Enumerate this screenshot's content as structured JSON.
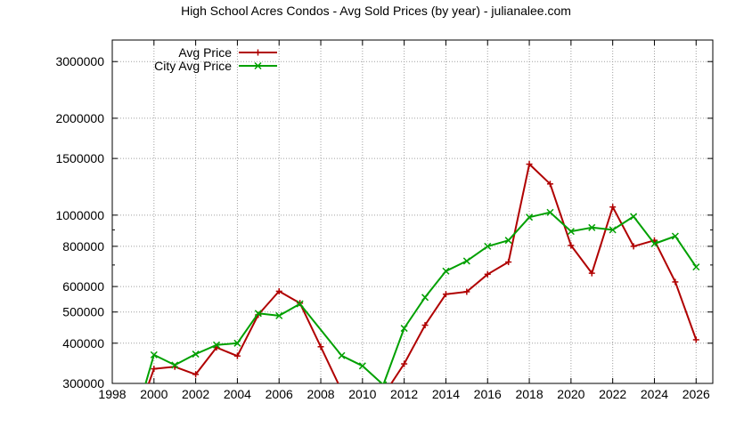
{
  "chart_data": {
    "type": "line",
    "title": "High School Acres Condos - Avg Sold Prices (by year) - julianalee.com",
    "xlabel": "",
    "ylabel": "",
    "y_scale": "log",
    "xlim": [
      1998,
      2026.8
    ],
    "ylim": [
      300000,
      3500000
    ],
    "x_ticks": [
      1998,
      2000,
      2002,
      2004,
      2006,
      2008,
      2010,
      2012,
      2014,
      2016,
      2018,
      2020,
      2022,
      2024,
      2026
    ],
    "y_ticks": [
      300000,
      400000,
      500000,
      600000,
      800000,
      1000000,
      1500000,
      2000000,
      3000000
    ],
    "y_tick_labels": [
      "300000",
      "400000",
      "500000",
      "600000",
      "800000",
      "1000000",
      "1500000",
      "2000000",
      "3000000"
    ],
    "grid": true,
    "legend_position": "top-left",
    "series": [
      {
        "name": "Avg Price",
        "color": "#b00000",
        "marker": "plus",
        "points": [
          [
            1999.5,
            270000
          ],
          [
            2000,
            333000
          ],
          [
            2001,
            338000
          ],
          [
            2002,
            320000
          ],
          [
            2003,
            388000
          ],
          [
            2004,
            365000
          ],
          [
            2005,
            490000
          ],
          [
            2006,
            580000
          ],
          [
            2007,
            533000
          ],
          [
            2008,
            390000
          ],
          [
            2009,
            285000
          ],
          [
            2011,
            275000
          ],
          [
            2012,
            345000
          ],
          [
            2013,
            455000
          ],
          [
            2014,
            568000
          ],
          [
            2015,
            578000
          ],
          [
            2016,
            655000
          ],
          [
            2017,
            715000
          ],
          [
            2018,
            1440000
          ],
          [
            2019,
            1250000
          ],
          [
            2020,
            805000
          ],
          [
            2021,
            660000
          ],
          [
            2022,
            1060000
          ],
          [
            2023,
            800000
          ],
          [
            2024,
            835000
          ],
          [
            2025,
            620000
          ],
          [
            2026,
            410000
          ]
        ]
      },
      {
        "name": "City Avg Price",
        "color": "#00a000",
        "marker": "cross",
        "points": [
          [
            1999.5,
            285000
          ],
          [
            2000,
            368000
          ],
          [
            2001,
            342000
          ],
          [
            2002,
            370000
          ],
          [
            2003,
            395000
          ],
          [
            2004,
            400000
          ],
          [
            2005,
            495000
          ],
          [
            2006,
            487000
          ],
          [
            2007,
            530000
          ],
          [
            2009,
            366000
          ],
          [
            2010,
            340000
          ],
          [
            2011,
            297000
          ],
          [
            2012,
            445000
          ],
          [
            2013,
            555000
          ],
          [
            2014,
            670000
          ],
          [
            2015,
            720000
          ],
          [
            2016,
            800000
          ],
          [
            2017,
            835000
          ],
          [
            2018,
            985000
          ],
          [
            2019,
            1020000
          ],
          [
            2020,
            890000
          ],
          [
            2021,
            915000
          ],
          [
            2022,
            900000
          ],
          [
            2023,
            990000
          ],
          [
            2024,
            815000
          ],
          [
            2025,
            860000
          ],
          [
            2026,
            690000
          ]
        ]
      }
    ]
  }
}
